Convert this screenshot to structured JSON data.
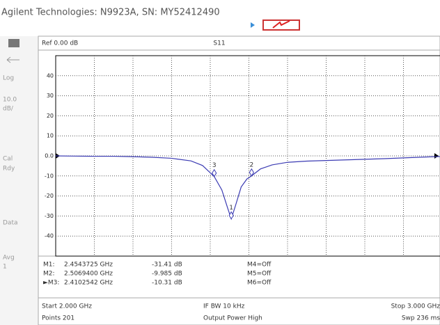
{
  "header": {
    "title": "Agilent Technologies: N9923A, SN: MY52412490"
  },
  "top_bar": {
    "left": "Ref 0.00 dB",
    "center": "S11"
  },
  "sidebar": {
    "items": [
      "Log",
      "10.0",
      "dB/",
      "Cal",
      "Rdy",
      "Data",
      "Avg",
      "1"
    ]
  },
  "chart_data": {
    "type": "line",
    "xlim": [
      2.0,
      3.0
    ],
    "ylim": [
      -50,
      50
    ],
    "yticks": [
      40,
      30,
      20,
      10,
      {
        "value": 0,
        "label": "0.0"
      },
      -10,
      -20,
      -30,
      -40
    ],
    "grid": true,
    "color": "#3b3bb3",
    "x": [
      2.0,
      2.05,
      2.1,
      2.15,
      2.2,
      2.25,
      2.3,
      2.35,
      2.38,
      2.4102542,
      2.43,
      2.445,
      2.4543725,
      2.465,
      2.48,
      2.495,
      2.50694,
      2.53,
      2.56,
      2.6,
      2.65,
      2.7,
      2.75,
      2.8,
      2.85,
      2.9,
      2.95,
      3.0
    ],
    "values": [
      0,
      -0.1,
      -0.2,
      -0.2,
      -0.4,
      -0.7,
      -1.2,
      -2.5,
      -4.8,
      -10.31,
      -17,
      -26,
      -31.41,
      -25,
      -15.5,
      -11.5,
      -9.985,
      -6.5,
      -4.5,
      -3.2,
      -2.6,
      -2.3,
      -2.0,
      -1.7,
      -1.4,
      -1.0,
      -0.6,
      -0.3
    ],
    "markers": [
      {
        "label": "1",
        "x": 2.4543725,
        "value": -31.41
      },
      {
        "label": "2",
        "x": 2.50694,
        "value": -9.985
      },
      {
        "label": "3",
        "x": 2.4102542,
        "value": -10.31
      }
    ]
  },
  "markers_table": {
    "rows": [
      [
        "M1:",
        "2.4543725 GHz",
        "-31.41 dB",
        "M4=Off"
      ],
      [
        "M2:",
        "2.5069400 GHz",
        "-9.985 dB",
        "M5=Off"
      ],
      [
        "►M3:",
        "2.4102542 GHz",
        "-10.31 dB",
        "M6=Off"
      ]
    ]
  },
  "footer": {
    "rows": [
      [
        "Start 2.000 GHz",
        "IF BW 10 kHz",
        "Stop 3.000 GHz"
      ],
      [
        "Points 201",
        "Output Power High",
        "Swp 236 ms"
      ]
    ]
  }
}
